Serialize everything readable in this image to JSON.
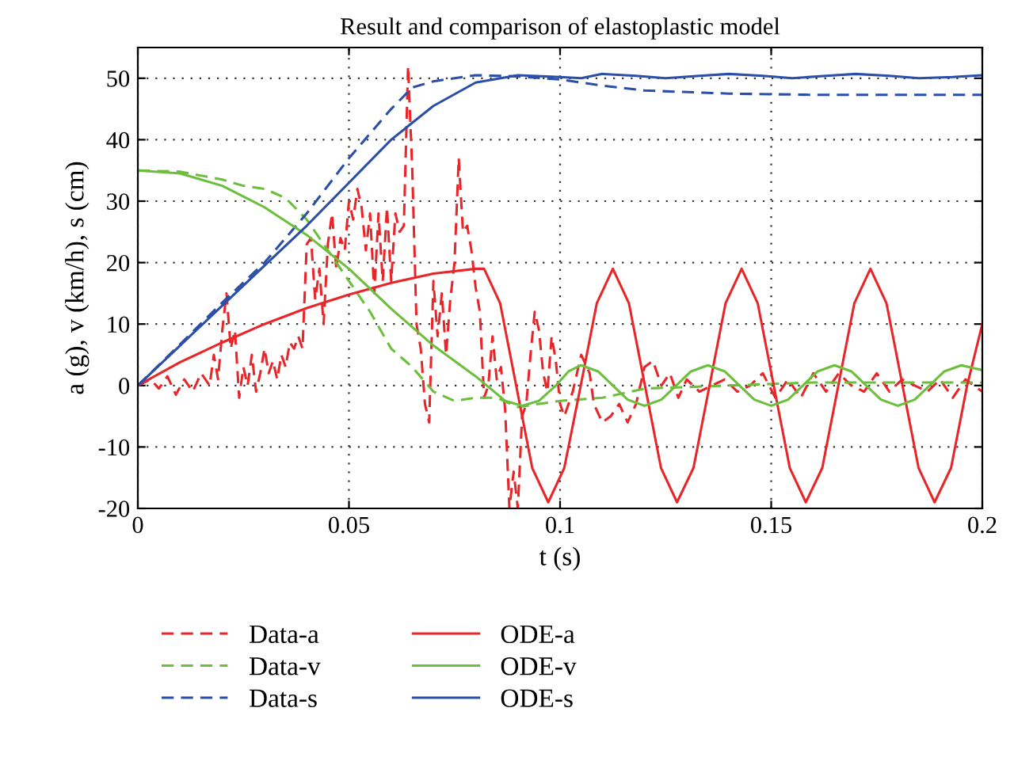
{
  "chart_data": {
    "type": "line",
    "title": "Result and comparison of elastoplastic model",
    "xlabel": "t (s)",
    "ylabel": "a (g), v (km/h), s (cm)",
    "xlim": [
      0,
      0.2
    ],
    "xticks": [
      0,
      0.05,
      0.1,
      0.15,
      0.2
    ],
    "ylim": [
      -20,
      55
    ],
    "yticks": [
      -20,
      -10,
      0,
      10,
      20,
      30,
      40,
      50
    ],
    "grid": true,
    "legend": "bottom",
    "series": [
      {
        "name": "Data-a",
        "color": "#e8262a",
        "line_style": "dashed",
        "x": [
          0,
          0.003,
          0.005,
          0.007,
          0.009,
          0.011,
          0.013,
          0.015,
          0.017,
          0.018,
          0.019,
          0.02,
          0.021,
          0.022,
          0.023,
          0.024,
          0.025,
          0.026,
          0.027,
          0.028,
          0.029,
          0.03,
          0.031,
          0.032,
          0.033,
          0.034,
          0.035,
          0.036,
          0.037,
          0.038,
          0.039,
          0.04,
          0.041,
          0.042,
          0.043,
          0.044,
          0.045,
          0.046,
          0.047,
          0.048,
          0.049,
          0.05,
          0.051,
          0.052,
          0.053,
          0.054,
          0.055,
          0.056,
          0.057,
          0.058,
          0.059,
          0.06,
          0.061,
          0.062,
          0.063,
          0.064,
          0.065,
          0.066,
          0.067,
          0.068,
          0.069,
          0.07,
          0.071,
          0.072,
          0.073,
          0.074,
          0.075,
          0.076,
          0.077,
          0.078,
          0.079,
          0.08,
          0.081,
          0.082,
          0.083,
          0.084,
          0.085,
          0.086,
          0.087,
          0.088,
          0.089,
          0.09,
          0.091,
          0.092,
          0.093,
          0.094,
          0.095,
          0.096,
          0.097,
          0.098,
          0.099,
          0.1,
          0.101,
          0.103,
          0.105,
          0.107,
          0.108,
          0.11,
          0.112,
          0.114,
          0.116,
          0.118,
          0.12,
          0.122,
          0.124,
          0.126,
          0.128,
          0.13,
          0.133,
          0.136,
          0.139,
          0.142,
          0.145,
          0.148,
          0.151,
          0.154,
          0.157,
          0.16,
          0.163,
          0.166,
          0.169,
          0.172,
          0.175,
          0.178,
          0.181,
          0.184,
          0.187,
          0.19,
          0.193,
          0.196,
          0.2
        ],
        "values": [
          0,
          1,
          -0.5,
          1.5,
          -1.5,
          1,
          -1,
          2,
          0,
          5,
          1,
          9,
          15,
          6,
          9,
          -2,
          3,
          0,
          5,
          -1,
          2,
          6,
          2,
          4,
          1,
          5,
          3,
          7,
          6,
          8,
          6,
          23,
          24,
          14,
          19,
          10,
          23,
          28,
          19,
          24,
          22,
          30,
          27,
          32,
          29,
          22,
          28,
          15,
          28,
          17,
          29,
          17,
          28,
          25,
          26,
          52,
          35,
          10,
          6,
          -3,
          -6,
          17,
          8,
          15,
          5,
          14,
          20,
          37,
          25,
          26,
          22,
          16,
          12,
          -2,
          0,
          8,
          1,
          3,
          -4,
          -20,
          -14,
          -20,
          -5,
          -3,
          5,
          12,
          9,
          2,
          -1,
          8,
          4,
          -3,
          -5,
          -1,
          5,
          2,
          -3,
          -6,
          -5,
          -3,
          -6,
          -3,
          3,
          4,
          0,
          2,
          -2,
          1,
          -1,
          0,
          1,
          -1,
          0,
          2,
          -2,
          1,
          -2,
          2,
          -1,
          2,
          0,
          -1,
          2,
          -1,
          1,
          0,
          -1,
          1,
          -2,
          1,
          -1
        ]
      },
      {
        "name": "Data-v",
        "color": "#6cbf3c",
        "line_style": "dashed",
        "x": [
          0,
          0.01,
          0.02,
          0.025,
          0.03,
          0.035,
          0.04,
          0.045,
          0.05,
          0.055,
          0.06,
          0.065,
          0.07,
          0.075,
          0.08,
          0.085,
          0.09,
          0.1,
          0.11,
          0.12,
          0.14,
          0.16,
          0.2
        ],
        "values": [
          35,
          34.8,
          33.5,
          32.5,
          32,
          30.5,
          27,
          22,
          17,
          12,
          6,
          3,
          -1,
          -2.5,
          -2,
          -2,
          -3.5,
          -2.5,
          -2,
          -0.5,
          0,
          0.5,
          0.5
        ]
      },
      {
        "name": "Data-s",
        "color": "#2b4fa8",
        "line_style": "dashed",
        "x": [
          0,
          0.01,
          0.02,
          0.03,
          0.04,
          0.05,
          0.06,
          0.065,
          0.07,
          0.08,
          0.09,
          0.1,
          0.11,
          0.12,
          0.14,
          0.16,
          0.2
        ],
        "values": [
          0,
          6.7,
          13.5,
          20,
          28,
          37,
          45,
          48.5,
          49.5,
          50.5,
          50.3,
          49.8,
          48.8,
          48,
          47.5,
          47.3,
          47.3
        ]
      },
      {
        "name": "ODE-a",
        "color": "#e8262a",
        "line_style": "solid",
        "x": [
          0,
          0.01,
          0.02,
          0.03,
          0.04,
          0.05,
          0.06,
          0.07,
          0.08,
          0.082,
          0.0858,
          0.0896,
          0.0934,
          0.0972,
          0.101,
          0.1049,
          0.1087,
          0.1125,
          0.1163,
          0.1201,
          0.1239,
          0.1277,
          0.1316,
          0.1354,
          0.1392,
          0.143,
          0.1468,
          0.1506,
          0.1544,
          0.1582,
          0.1621,
          0.1659,
          0.1697,
          0.1735,
          0.1773,
          0.1811,
          0.1849,
          0.1887,
          0.1926,
          0.1964,
          0.2
        ],
        "values": [
          0,
          3.8,
          7,
          10,
          12.6,
          14.8,
          16.7,
          18.2,
          19,
          19,
          13.4,
          0,
          -13.4,
          -19,
          -13.4,
          0,
          13.4,
          19,
          13.4,
          0,
          -13.4,
          -19,
          -13.4,
          0,
          13.4,
          19,
          13.4,
          0,
          -13.4,
          -19,
          -13.4,
          0,
          13.4,
          19,
          13.4,
          0,
          -13.4,
          -19,
          -13.4,
          0,
          10
        ]
      },
      {
        "name": "ODE-v",
        "color": "#6cbf3c",
        "line_style": "solid",
        "x": [
          0,
          0.01,
          0.02,
          0.03,
          0.04,
          0.05,
          0.06,
          0.07,
          0.08,
          0.087,
          0.091,
          0.095,
          0.099,
          0.102,
          0.105,
          0.109,
          0.1125,
          0.116,
          0.12,
          0.124,
          0.1275,
          0.131,
          0.135,
          0.139,
          0.1425,
          0.146,
          0.15,
          0.154,
          0.1575,
          0.161,
          0.165,
          0.169,
          0.1725,
          0.176,
          0.18,
          0.184,
          0.1875,
          0.191,
          0.195,
          0.2
        ],
        "values": [
          35,
          34.5,
          32.5,
          29,
          24.5,
          19,
          12.5,
          6.5,
          1.5,
          -2.5,
          -3.3,
          -2.5,
          0,
          2.3,
          3.3,
          2.3,
          0,
          -2.3,
          -3.3,
          -2.3,
          0,
          2.3,
          3.3,
          2.3,
          0,
          -2.3,
          -3.3,
          -2.3,
          0,
          2.3,
          3.3,
          2.3,
          0,
          -2.3,
          -3.3,
          -2.3,
          0,
          2.3,
          3.3,
          2.5
        ]
      },
      {
        "name": "ODE-s",
        "color": "#2b4fa8",
        "line_style": "solid",
        "x": [
          0,
          0.01,
          0.02,
          0.03,
          0.04,
          0.05,
          0.06,
          0.07,
          0.08,
          0.09,
          0.1,
          0.105,
          0.11,
          0.118,
          0.125,
          0.133,
          0.14,
          0.148,
          0.155,
          0.163,
          0.17,
          0.178,
          0.185,
          0.193,
          0.2
        ],
        "values": [
          0,
          6.5,
          13,
          19.5,
          26,
          33,
          40,
          45.5,
          49.3,
          50.5,
          50.2,
          50,
          50.7,
          50.4,
          50,
          50.4,
          50.7,
          50.4,
          50,
          50.4,
          50.7,
          50.4,
          50,
          50.2,
          50.5
        ]
      }
    ]
  }
}
